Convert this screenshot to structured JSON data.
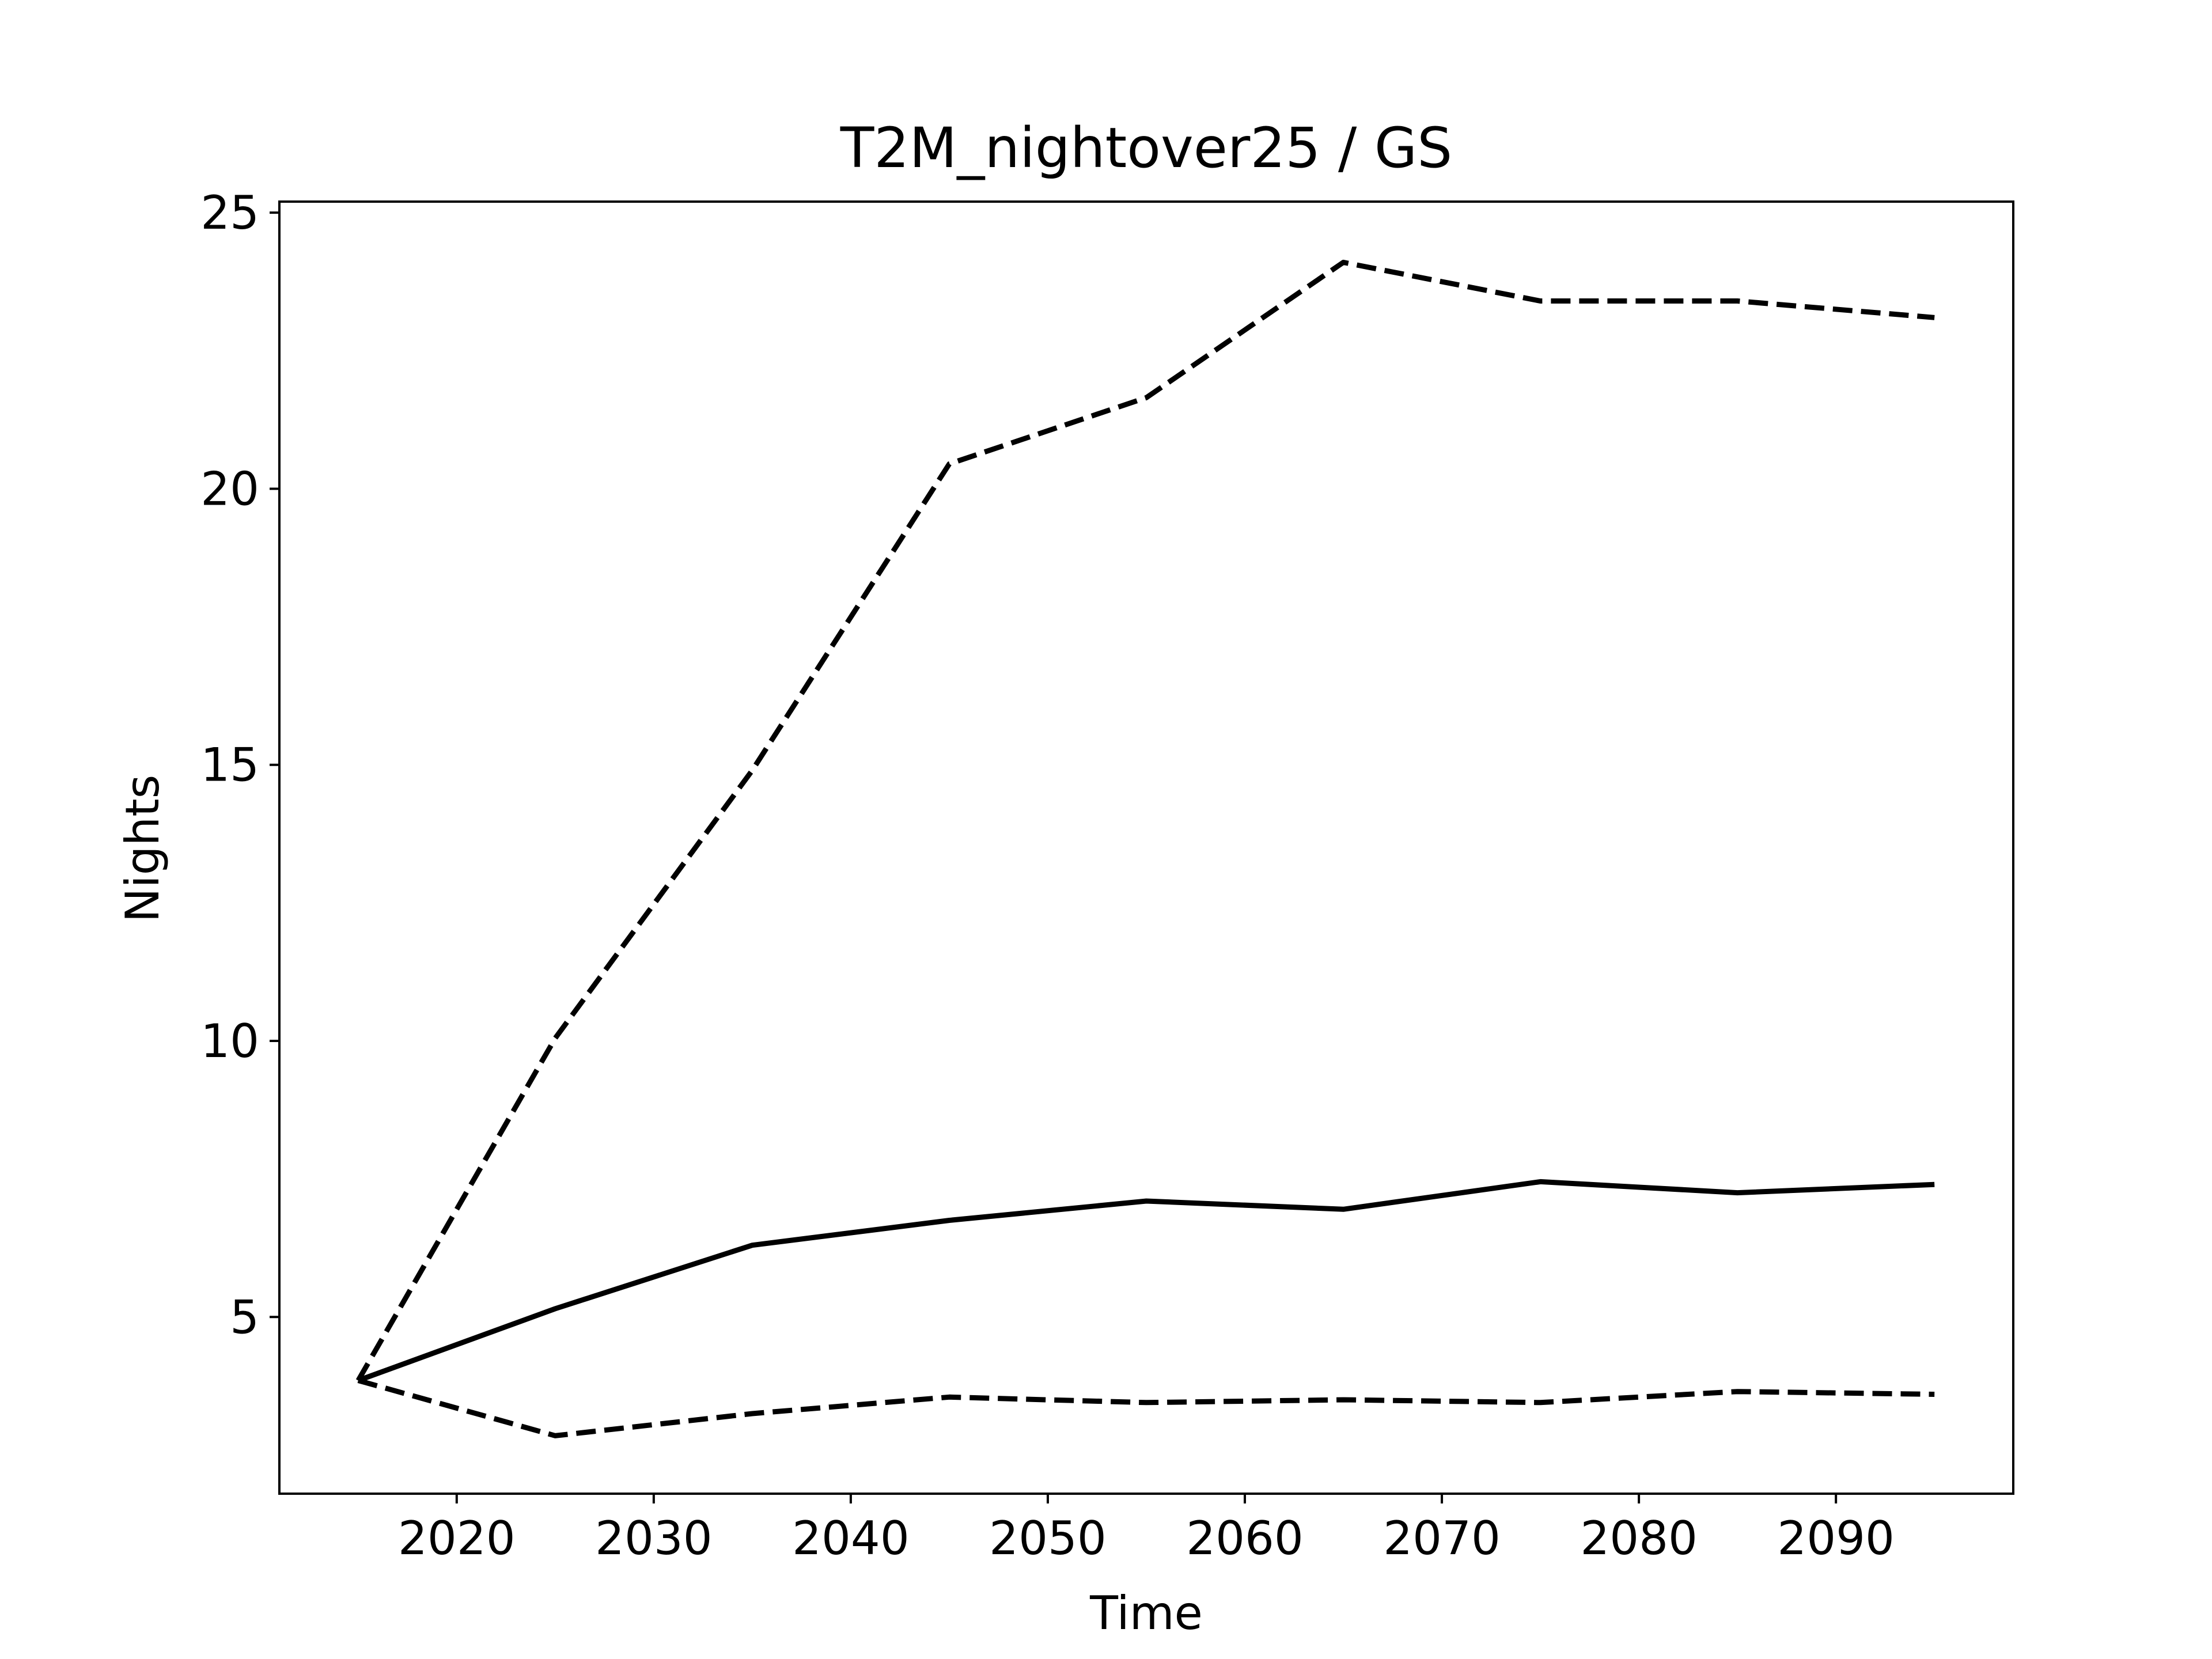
{
  "chart_data": {
    "type": "line",
    "title": "T2M_nightover25 / GS",
    "xlabel": "Time",
    "ylabel": "Nights",
    "x": [
      2015,
      2025,
      2035,
      2045,
      2055,
      2065,
      2075,
      2085,
      2095
    ],
    "xlim": [
      2011,
      2099
    ],
    "ylim": [
      1.8,
      25.2
    ],
    "xticks": [
      2020,
      2030,
      2040,
      2050,
      2060,
      2070,
      2080,
      2090
    ],
    "yticks": [
      5,
      10,
      15,
      20,
      25
    ],
    "grid": false,
    "legend": false,
    "series": [
      {
        "style": "dashed",
        "values": [
          3.85,
          10.05,
          14.9,
          20.45,
          21.65,
          24.1,
          23.4,
          23.4,
          23.1
        ]
      },
      {
        "style": "solid",
        "values": [
          3.85,
          5.15,
          6.3,
          6.75,
          7.1,
          6.95,
          7.45,
          7.25,
          7.4
        ]
      },
      {
        "style": "dashed",
        "values": [
          3.85,
          2.85,
          3.25,
          3.55,
          3.45,
          3.5,
          3.45,
          3.65,
          3.6
        ]
      }
    ]
  }
}
